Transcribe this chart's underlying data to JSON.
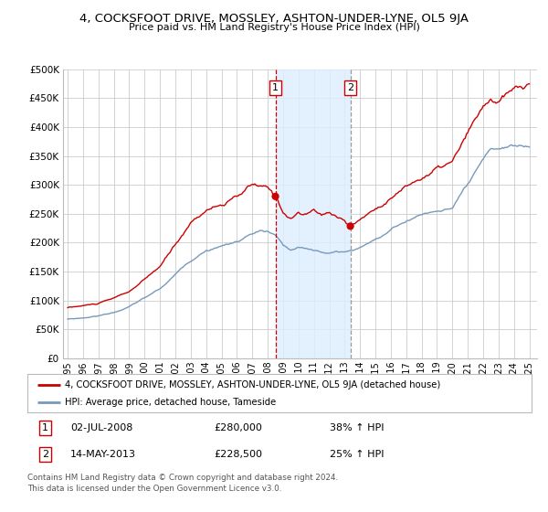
{
  "title": "4, COCKSFOOT DRIVE, MOSSLEY, ASHTON-UNDER-LYNE, OL5 9JA",
  "subtitle": "Price paid vs. HM Land Registry's House Price Index (HPI)",
  "legend_line1": "4, COCKSFOOT DRIVE, MOSSLEY, ASHTON-UNDER-LYNE, OL5 9JA (detached house)",
  "legend_line2": "HPI: Average price, detached house, Tameside",
  "annotation1_date": "02-JUL-2008",
  "annotation1_price": "£280,000",
  "annotation1_hpi": "38% ↑ HPI",
  "annotation2_date": "14-MAY-2013",
  "annotation2_price": "£228,500",
  "annotation2_hpi": "25% ↑ HPI",
  "footer": "Contains HM Land Registry data © Crown copyright and database right 2024.\nThis data is licensed under the Open Government Licence v3.0.",
  "red_line_color": "#cc0000",
  "blue_line_color": "#7799bb",
  "dot_color": "#cc0000",
  "vline1_color": "#cc0000",
  "vline2_color": "#999999",
  "shade_color": "#ddeeff",
  "grid_color": "#cccccc",
  "background_color": "#ffffff",
  "ylim": [
    0,
    500000
  ],
  "yticks": [
    0,
    50000,
    100000,
    150000,
    200000,
    250000,
    300000,
    350000,
    400000,
    450000,
    500000
  ],
  "sale1_year": 2008.5,
  "sale2_year": 2013.37,
  "sale1_price": 280000,
  "sale2_price": 228500,
  "xstart": 1995,
  "xend": 2025
}
